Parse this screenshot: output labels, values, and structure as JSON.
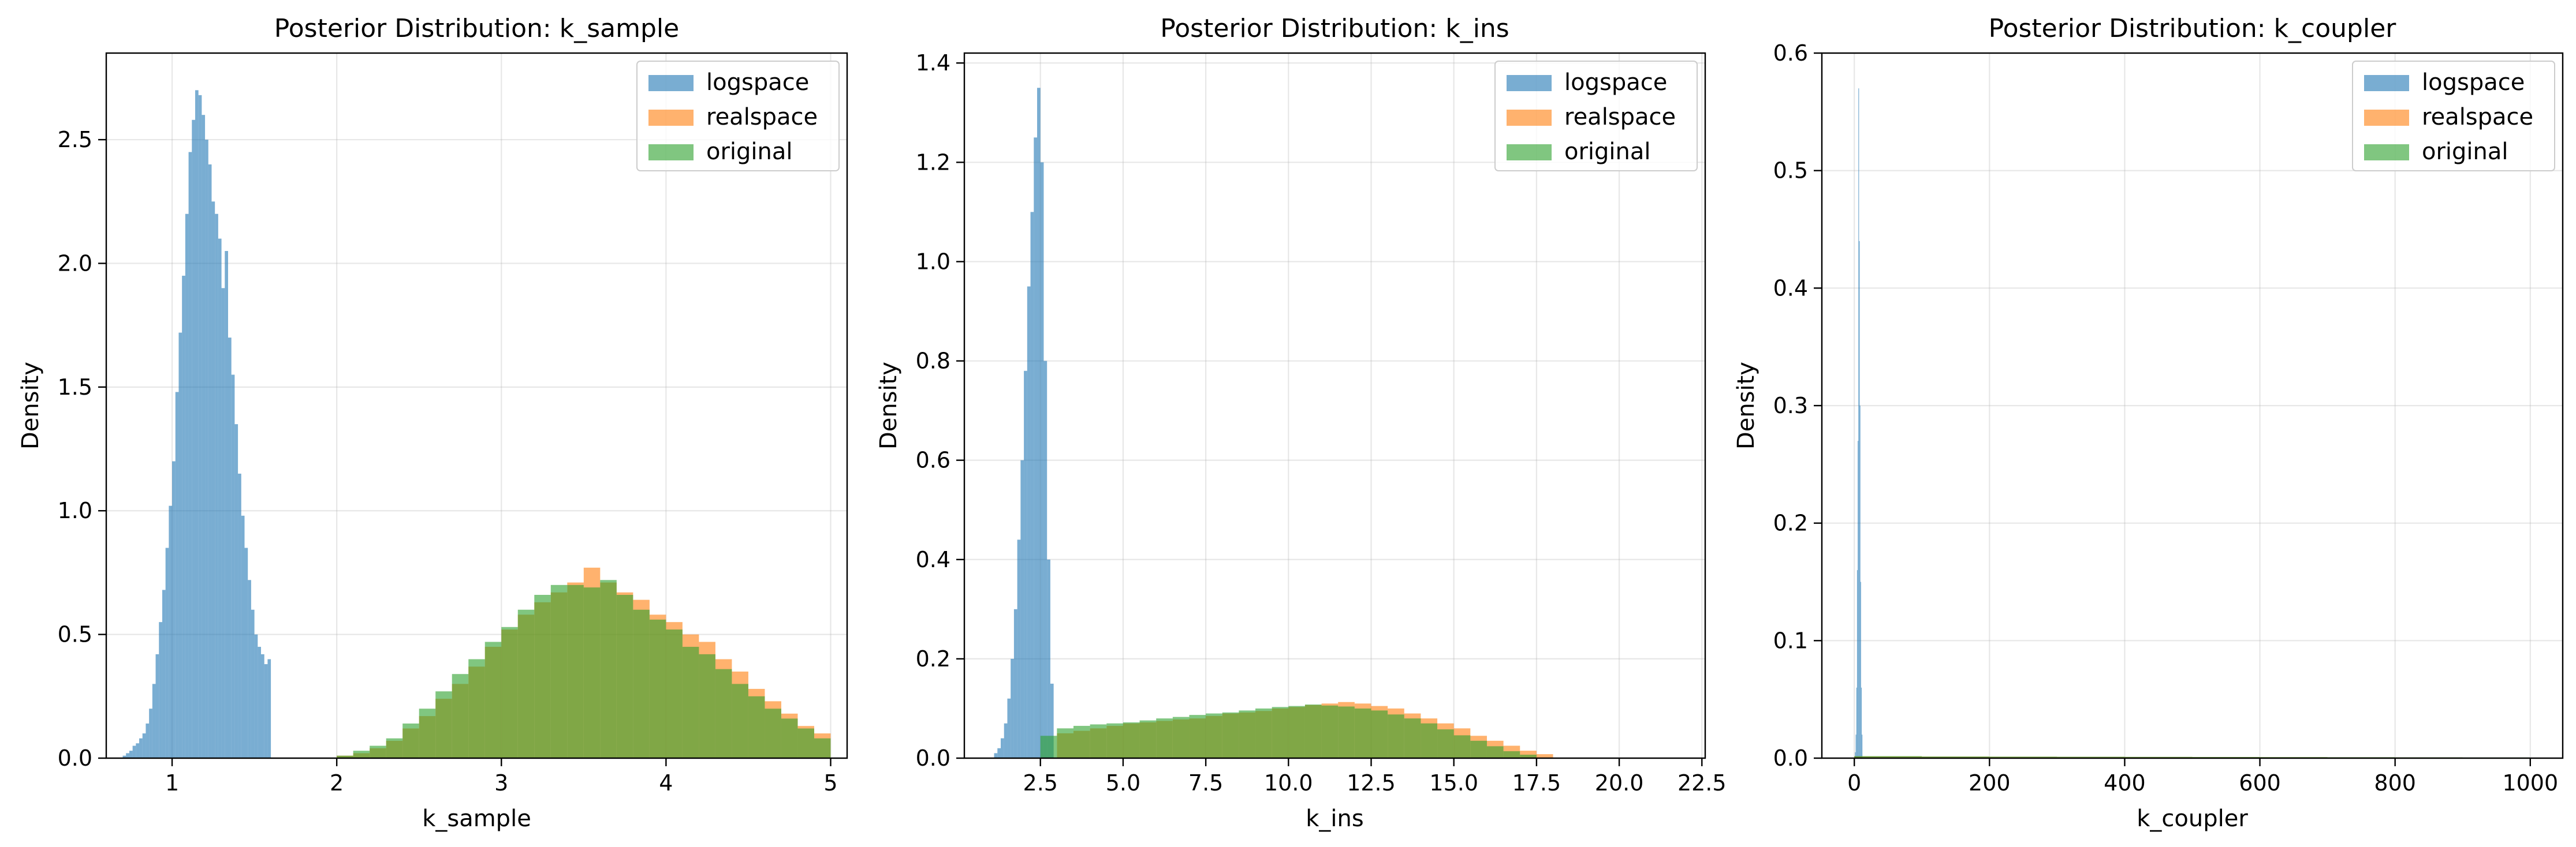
{
  "chart_data": [
    {
      "type": "histogram",
      "title": "Posterior Distribution: k_sample",
      "xlabel": "k_sample",
      "ylabel": "Density",
      "xlim": [
        0.6,
        5.1
      ],
      "ylim": [
        0,
        2.85
      ],
      "xticks": [
        1,
        2,
        3,
        4,
        5
      ],
      "xtick_labels": [
        "1",
        "2",
        "3",
        "4",
        "5"
      ],
      "yticks": [
        0,
        0.5,
        1.0,
        1.5,
        2.0,
        2.5
      ],
      "ytick_labels": [
        "0.0",
        "0.5",
        "1.0",
        "1.5",
        "2.0",
        "2.5"
      ],
      "grid": true,
      "legend_position": "top-right",
      "series": [
        {
          "name": "logspace",
          "color": "#1f77b4",
          "bin_edges": [
            0.7,
            0.72,
            0.74,
            0.76,
            0.78,
            0.8,
            0.82,
            0.84,
            0.86,
            0.88,
            0.9,
            0.92,
            0.94,
            0.96,
            0.98,
            1.0,
            1.02,
            1.04,
            1.06,
            1.08,
            1.1,
            1.12,
            1.14,
            1.16,
            1.18,
            1.2,
            1.22,
            1.24,
            1.26,
            1.28,
            1.3,
            1.32,
            1.34,
            1.36,
            1.38,
            1.4,
            1.42,
            1.44,
            1.46,
            1.48,
            1.5,
            1.52,
            1.54,
            1.56,
            1.58,
            1.6
          ],
          "density": [
            0.01,
            0.02,
            0.03,
            0.05,
            0.06,
            0.08,
            0.1,
            0.14,
            0.2,
            0.3,
            0.42,
            0.55,
            0.68,
            0.85,
            1.02,
            1.2,
            1.48,
            1.72,
            1.95,
            2.2,
            2.45,
            2.58,
            2.7,
            2.68,
            2.6,
            2.5,
            2.4,
            2.25,
            2.2,
            2.1,
            1.9,
            2.05,
            1.7,
            1.55,
            1.35,
            1.15,
            0.98,
            0.85,
            0.72,
            0.6,
            0.5,
            0.45,
            0.42,
            0.38,
            0.4
          ]
        },
        {
          "name": "realspace",
          "color": "#ff7f0e",
          "bin_edges": [
            2.0,
            2.1,
            2.2,
            2.3,
            2.4,
            2.5,
            2.6,
            2.7,
            2.8,
            2.9,
            3.0,
            3.1,
            3.2,
            3.3,
            3.4,
            3.5,
            3.6,
            3.7,
            3.8,
            3.9,
            4.0,
            4.1,
            4.2,
            4.3,
            4.4,
            4.5,
            4.6,
            4.7,
            4.8,
            4.9,
            5.0
          ],
          "density": [
            0.01,
            0.02,
            0.04,
            0.07,
            0.12,
            0.17,
            0.24,
            0.3,
            0.37,
            0.45,
            0.52,
            0.58,
            0.63,
            0.67,
            0.71,
            0.77,
            0.71,
            0.67,
            0.64,
            0.58,
            0.55,
            0.5,
            0.47,
            0.4,
            0.35,
            0.28,
            0.23,
            0.18,
            0.13,
            0.1
          ]
        },
        {
          "name": "original",
          "color": "#2ca02c",
          "bin_edges": [
            2.0,
            2.1,
            2.2,
            2.3,
            2.4,
            2.5,
            2.6,
            2.7,
            2.8,
            2.9,
            3.0,
            3.1,
            3.2,
            3.3,
            3.4,
            3.5,
            3.6,
            3.7,
            3.8,
            3.9,
            4.0,
            4.1,
            4.2,
            4.3,
            4.4,
            4.5,
            4.6,
            4.7,
            4.8,
            4.9,
            5.0
          ],
          "density": [
            0.01,
            0.03,
            0.05,
            0.08,
            0.14,
            0.2,
            0.27,
            0.34,
            0.4,
            0.47,
            0.53,
            0.6,
            0.66,
            0.7,
            0.7,
            0.69,
            0.72,
            0.66,
            0.6,
            0.56,
            0.52,
            0.45,
            0.42,
            0.36,
            0.3,
            0.25,
            0.2,
            0.16,
            0.12,
            0.08
          ]
        }
      ]
    },
    {
      "type": "histogram",
      "title": "Posterior Distribution: k_ins",
      "xlabel": "k_ins",
      "ylabel": "Density",
      "xlim": [
        0.2,
        22.6
      ],
      "ylim": [
        0,
        1.42
      ],
      "xticks": [
        2.5,
        5.0,
        7.5,
        10.0,
        12.5,
        15.0,
        17.5,
        20.0,
        22.5
      ],
      "xtick_labels": [
        "2.5",
        "5.0",
        "7.5",
        "10.0",
        "12.5",
        "15.0",
        "17.5",
        "20.0",
        "22.5"
      ],
      "yticks": [
        0,
        0.2,
        0.4,
        0.6,
        0.8,
        1.0,
        1.2,
        1.4
      ],
      "ytick_labels": [
        "0.0",
        "0.2",
        "0.4",
        "0.6",
        "0.8",
        "1.0",
        "1.2",
        "1.4"
      ],
      "grid": true,
      "legend_position": "top-right",
      "series": [
        {
          "name": "logspace",
          "color": "#1f77b4",
          "bin_edges": [
            1.1,
            1.2,
            1.3,
            1.4,
            1.5,
            1.6,
            1.7,
            1.8,
            1.9,
            2.0,
            2.1,
            2.2,
            2.3,
            2.4,
            2.5,
            2.6,
            2.7,
            2.8,
            2.9
          ],
          "density": [
            0.01,
            0.02,
            0.04,
            0.07,
            0.12,
            0.2,
            0.3,
            0.44,
            0.6,
            0.78,
            0.95,
            1.1,
            1.25,
            1.35,
            1.2,
            0.8,
            0.4,
            0.15
          ]
        },
        {
          "name": "realspace",
          "color": "#ff7f0e",
          "bin_edges": [
            3.0,
            3.5,
            4.0,
            4.5,
            5.0,
            5.5,
            6.0,
            6.5,
            7.0,
            7.5,
            8.0,
            8.5,
            9.0,
            9.5,
            10.0,
            10.5,
            11.0,
            11.5,
            12.0,
            12.5,
            13.0,
            13.5,
            14.0,
            14.5,
            15.0,
            15.5,
            16.0,
            16.5,
            17.0,
            17.5,
            18.0
          ],
          "density": [
            0.05,
            0.055,
            0.06,
            0.065,
            0.07,
            0.072,
            0.075,
            0.078,
            0.08,
            0.085,
            0.09,
            0.092,
            0.095,
            0.1,
            0.103,
            0.107,
            0.11,
            0.113,
            0.11,
            0.105,
            0.1,
            0.09,
            0.08,
            0.07,
            0.06,
            0.045,
            0.035,
            0.025,
            0.015,
            0.008
          ]
        },
        {
          "name": "original",
          "color": "#2ca02c",
          "bin_edges": [
            2.5,
            3.0,
            3.5,
            4.0,
            4.5,
            5.0,
            5.5,
            6.0,
            6.5,
            7.0,
            7.5,
            8.0,
            8.5,
            9.0,
            9.5,
            10.0,
            10.5,
            11.0,
            11.5,
            12.0,
            12.5,
            13.0,
            13.5,
            14.0,
            14.5,
            15.0,
            15.5,
            16.0,
            16.5,
            17.0,
            17.5
          ],
          "density": [
            0.045,
            0.06,
            0.065,
            0.068,
            0.07,
            0.072,
            0.076,
            0.08,
            0.083,
            0.087,
            0.09,
            0.092,
            0.096,
            0.1,
            0.103,
            0.105,
            0.108,
            0.106,
            0.104,
            0.1,
            0.096,
            0.088,
            0.08,
            0.07,
            0.058,
            0.046,
            0.035,
            0.024,
            0.014,
            0.007
          ]
        }
      ]
    },
    {
      "type": "histogram",
      "title": "Posterior Distribution: k_coupler",
      "xlabel": "k_coupler",
      "ylabel": "Density",
      "xlim": [
        -48,
        1048
      ],
      "ylim": [
        0,
        0.6
      ],
      "xticks": [
        0,
        200,
        400,
        600,
        800,
        1000
      ],
      "xtick_labels": [
        "0",
        "200",
        "400",
        "600",
        "800",
        "1000"
      ],
      "yticks": [
        0,
        0.1,
        0.2,
        0.3,
        0.4,
        0.5,
        0.6
      ],
      "ytick_labels": [
        "0.0",
        "0.1",
        "0.2",
        "0.3",
        "0.4",
        "0.5",
        "0.6"
      ],
      "grid": true,
      "legend_position": "top-right",
      "series": [
        {
          "name": "logspace",
          "color": "#1f77b4",
          "bin_edges": [
            1,
            2,
            3,
            4,
            5,
            6,
            7,
            8,
            9,
            10,
            11,
            12
          ],
          "density": [
            0.005,
            0.02,
            0.06,
            0.16,
            0.27,
            0.57,
            0.44,
            0.3,
            0.15,
            0.06,
            0.02
          ]
        },
        {
          "name": "realspace",
          "color": "#ff7f0e",
          "bin_edges": [
            0,
            100,
            200,
            300,
            400,
            500,
            600,
            700,
            800,
            900,
            1000
          ],
          "density": [
            0.0015,
            0.0013,
            0.0012,
            0.0011,
            0.001,
            0.0009,
            0.0008,
            0.0007,
            0.0006,
            0.0005
          ]
        },
        {
          "name": "original",
          "color": "#2ca02c",
          "bin_edges": [
            0,
            100,
            200,
            300,
            400,
            500,
            600,
            700,
            800,
            900,
            1000
          ],
          "density": [
            0.0017,
            0.0014,
            0.0013,
            0.0012,
            0.0011,
            0.001,
            0.0009,
            0.0008,
            0.0007,
            0.0006
          ]
        }
      ]
    }
  ]
}
